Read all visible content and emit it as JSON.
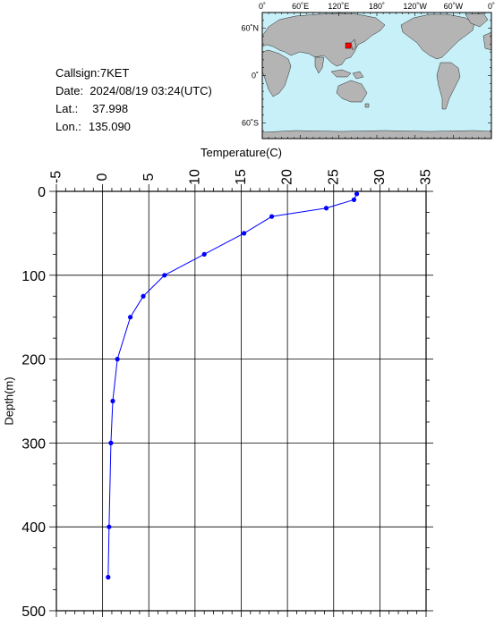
{
  "station": {
    "callsign": "Callsign:7KET",
    "date": "Date:  2024/08/19 03:24(UTC)",
    "lat_label": "Lat.:",
    "lat_value": "37.998",
    "lon_label": "Lon.:",
    "lon_value": "135.090"
  },
  "map": {
    "lon_ticks": [
      "0˚",
      "60˚E",
      "120˚E",
      "180˚",
      "120˚W",
      "60˚W",
      "0˚"
    ],
    "lat_ticks": [
      "60˚N",
      "0˚",
      "60˚S"
    ],
    "marker_lat": 37.998,
    "marker_lon": 135.09,
    "colors": {
      "ocean": "#c8f0f8",
      "land": "#b4b4b4",
      "marker": "#ff0000"
    }
  },
  "chart_data": {
    "type": "line",
    "title": "",
    "xlabel": "Temperature(C)",
    "ylabel": "Depth(m)",
    "xlim": [
      -5,
      35
    ],
    "ylim": [
      0,
      500
    ],
    "x_inverted": false,
    "y_inverted": true,
    "x_axis_position": "top",
    "x_ticks": [
      -5,
      0,
      5,
      10,
      15,
      20,
      25,
      30,
      35
    ],
    "y_ticks": [
      0,
      100,
      200,
      300,
      400,
      500
    ],
    "grid": true,
    "series": [
      {
        "color": "#0000ff",
        "points": [
          {
            "temperature": 27.5,
            "depth": 3
          },
          {
            "temperature": 27.2,
            "depth": 10
          },
          {
            "temperature": 24.2,
            "depth": 20
          },
          {
            "temperature": 18.3,
            "depth": 30
          },
          {
            "temperature": 15.3,
            "depth": 50
          },
          {
            "temperature": 11.0,
            "depth": 75
          },
          {
            "temperature": 6.7,
            "depth": 100
          },
          {
            "temperature": 4.4,
            "depth": 125
          },
          {
            "temperature": 3.0,
            "depth": 150
          },
          {
            "temperature": 1.6,
            "depth": 200
          },
          {
            "temperature": 1.1,
            "depth": 250
          },
          {
            "temperature": 0.9,
            "depth": 300
          },
          {
            "temperature": 0.7,
            "depth": 400
          },
          {
            "temperature": 0.6,
            "depth": 460
          }
        ]
      }
    ]
  }
}
